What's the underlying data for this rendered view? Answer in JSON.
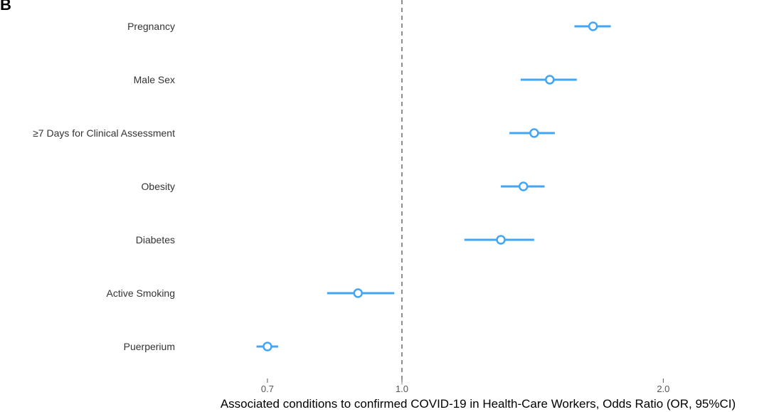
{
  "panel_label": "B",
  "chart_data": {
    "type": "scatter",
    "subtype": "forest",
    "xscale": "log",
    "xlabel": "Associated conditions to confirmed COVID-19 in Health-Care Workers, Odds Ratio (OR, 95%CI)",
    "xticks": [
      0.7,
      1.0,
      2.0
    ],
    "xtick_labels": [
      "0.7",
      "1.0",
      "2.0"
    ],
    "xlim": [
      0.5,
      3.0
    ],
    "reference_line": 1.0,
    "grid": false,
    "point_color": "#42A5F5",
    "rows": [
      {
        "label": "Pregnancy",
        "or": 1.66,
        "lo": 1.58,
        "hi": 1.74
      },
      {
        "label": "Male Sex",
        "or": 1.48,
        "lo": 1.37,
        "hi": 1.59
      },
      {
        "label": "≥7 Days for Clinical Assessment",
        "or": 1.42,
        "lo": 1.33,
        "hi": 1.5
      },
      {
        "label": "Obesity",
        "or": 1.38,
        "lo": 1.3,
        "hi": 1.46
      },
      {
        "label": "Diabetes",
        "or": 1.3,
        "lo": 1.18,
        "hi": 1.42
      },
      {
        "label": "Active Smoking",
        "or": 0.89,
        "lo": 0.82,
        "hi": 0.98
      },
      {
        "label": "Puerperium",
        "or": 0.7,
        "lo": 0.68,
        "hi": 0.72
      }
    ]
  }
}
